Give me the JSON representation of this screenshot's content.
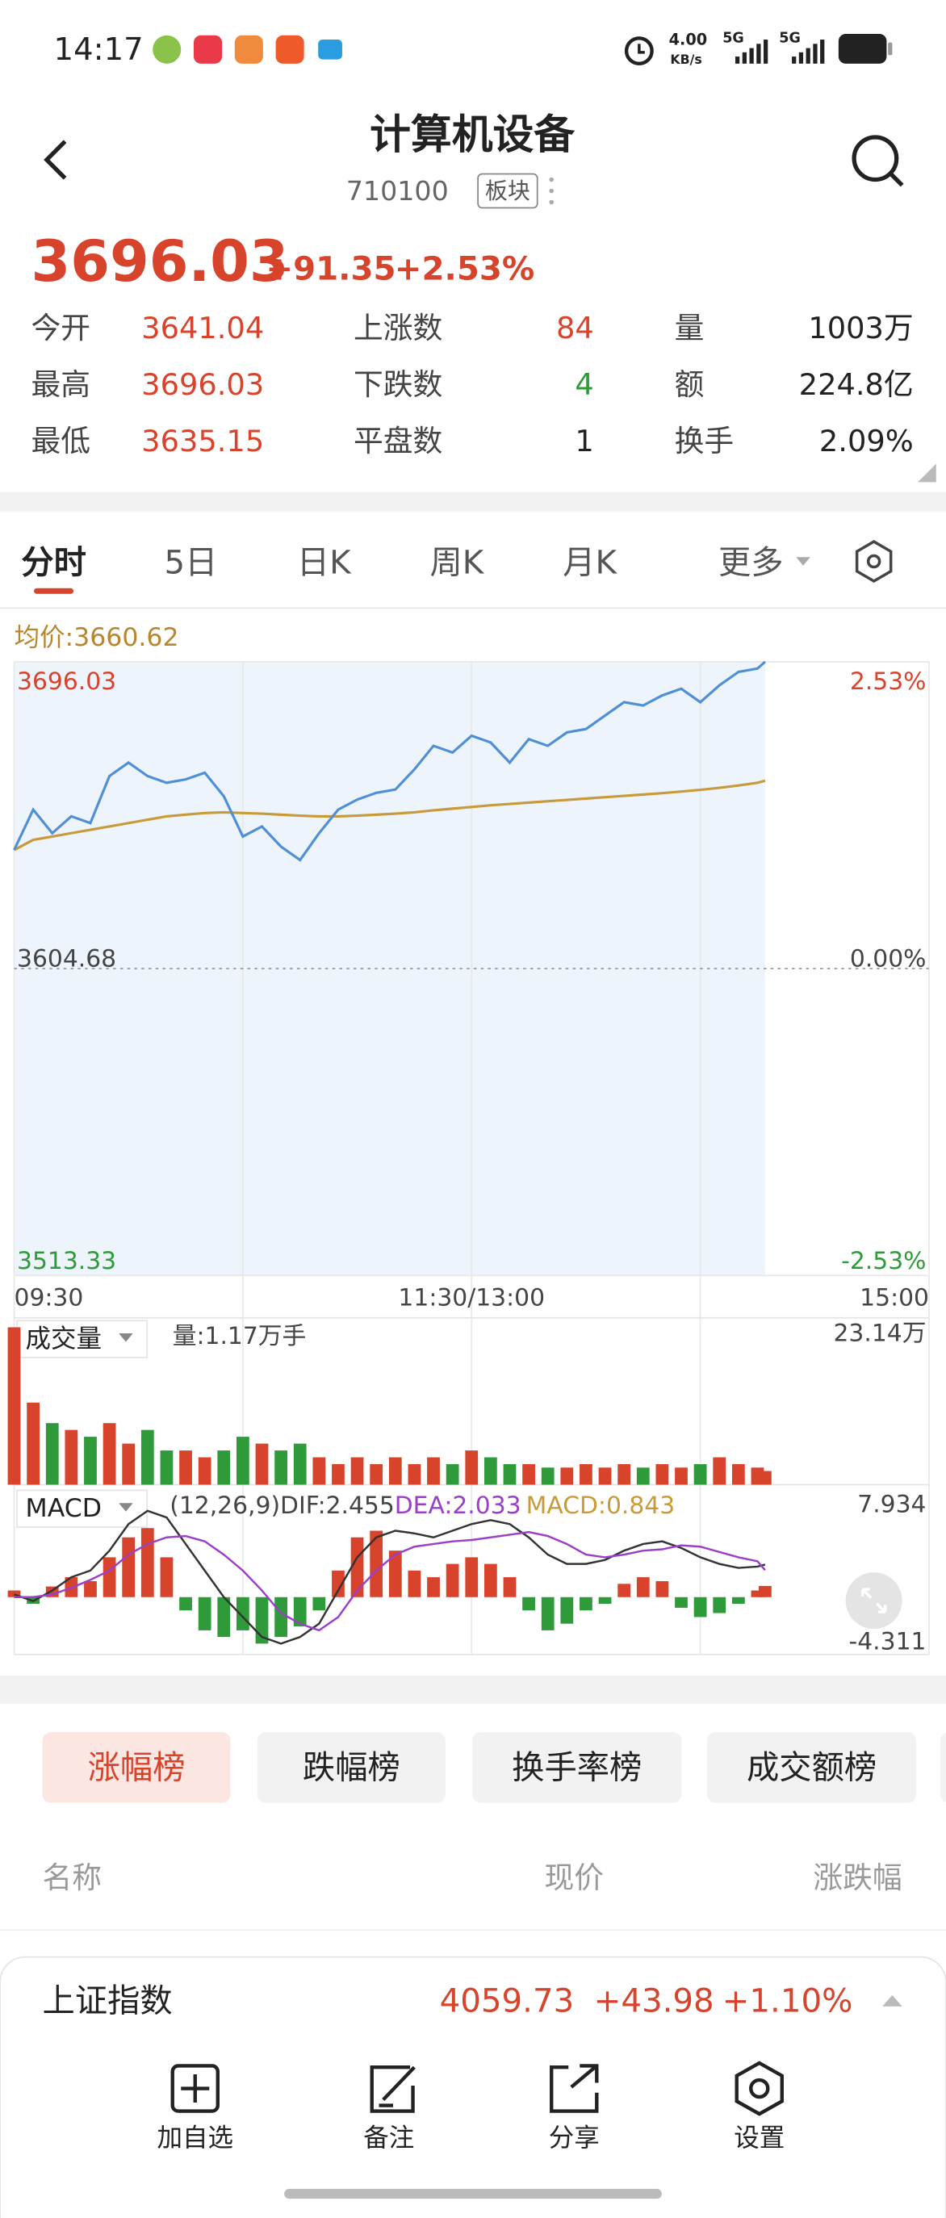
{
  "status_bar": {
    "time": "14:17",
    "speed": "4.00",
    "speed_unit": "KB/s",
    "network_1": "5G",
    "network_2": "5G"
  },
  "header": {
    "title": "计算机设备",
    "code": "710100",
    "tag": "板块"
  },
  "quote": {
    "price": "3696.03",
    "change": "+91.35",
    "change_pct": "+2.53%"
  },
  "stats": [
    [
      {
        "label": "今开",
        "value": "3641.04"
      },
      {
        "label": "上涨数",
        "value": "84"
      },
      {
        "label": "量",
        "value": "1003万"
      }
    ],
    [
      {
        "label": "最高",
        "value": "3696.03"
      },
      {
        "label": "下跌数",
        "value": "4"
      },
      {
        "label": "额",
        "value": "224.8亿"
      }
    ],
    [
      {
        "label": "最低",
        "value": "3635.15"
      },
      {
        "label": "平盘数",
        "value": "1"
      },
      {
        "label": "换手",
        "value": "2.09%"
      }
    ]
  ],
  "tabs": [
    "分时",
    "5日",
    "日K",
    "周K",
    "月K",
    "更多"
  ],
  "intraday": {
    "avg_label": "均价:3660.62",
    "ylim": [
      3513.33,
      3696.03
    ],
    "yticks": [
      3513.33,
      3604.68,
      3696.03
    ],
    "y2lim": [
      -2.53,
      2.53
    ],
    "y2ticks": [
      {
        "value": -2.53,
        "label": "-2.53%"
      },
      {
        "value": 0,
        "label": "0.00%"
      },
      {
        "value": 2.53,
        "label": "2.53%"
      }
    ],
    "xticks": [
      "09:30",
      "11:30/13:00",
      "15:00"
    ],
    "times": [
      "09:30",
      "09:35",
      "09:40",
      "09:45",
      "09:50",
      "09:55",
      "10:00",
      "10:05",
      "10:10",
      "10:15",
      "10:20",
      "10:25",
      "10:30",
      "10:35",
      "10:40",
      "10:45",
      "10:50",
      "10:55",
      "11:00",
      "11:05",
      "11:10",
      "11:15",
      "11:20",
      "11:25",
      "11:30",
      "13:05",
      "13:10",
      "13:15",
      "13:20",
      "13:25",
      "13:30",
      "13:35",
      "13:40",
      "13:45",
      "13:50",
      "13:55",
      "14:00",
      "14:05",
      "14:10",
      "14:15",
      "14:17"
    ],
    "price": [
      3640,
      3652,
      3645,
      3650,
      3648,
      3662,
      3666,
      3662,
      3660,
      3661,
      3663,
      3656,
      3644,
      3647,
      3641,
      3637,
      3645,
      3652,
      3655,
      3657,
      3658,
      3664,
      3671,
      3669,
      3674,
      3672,
      3666,
      3673,
      3671,
      3675,
      3676,
      3680,
      3684,
      3683,
      3686,
      3688,
      3684,
      3689,
      3693,
      3694,
      3696.03
    ],
    "avg": [
      3640,
      3643,
      3644,
      3645,
      3646,
      3647,
      3648,
      3649,
      3650,
      3650.5,
      3651,
      3651.2,
      3651,
      3650.8,
      3650.5,
      3650.2,
      3650,
      3650,
      3650.2,
      3650.5,
      3650.8,
      3651.2,
      3651.8,
      3652.3,
      3652.8,
      3653.3,
      3653.7,
      3654.1,
      3654.5,
      3654.9,
      3655.3,
      3655.7,
      3656.1,
      3656.5,
      3656.9,
      3657.4,
      3657.9,
      3658.5,
      3659.2,
      3660,
      3660.62
    ]
  },
  "volume": {
    "label": "成交量",
    "info": "量:1.17万手",
    "max": {
      "value": 23.14,
      "label": "23.14万"
    },
    "values": [
      23,
      12,
      9,
      8,
      7,
      9,
      6,
      8,
      5,
      5,
      4,
      5,
      7,
      6,
      5,
      6,
      4,
      3,
      4,
      3,
      4,
      3,
      4,
      3,
      5,
      4,
      3,
      3,
      2.5,
      2.5,
      3,
      2.5,
      3,
      2.5,
      3,
      2.5,
      3,
      4,
      3,
      2.5,
      2
    ]
  },
  "macd": {
    "label": "MACD",
    "params": "(12,26,9)DIF:2.455",
    "dea_label": "DEA:2.033",
    "macd_label": "MACD:0.843",
    "ylim": [
      -4.311,
      7.934
    ],
    "yticks": [
      -4.311,
      7.934
    ],
    "histogram": [
      0.5,
      -0.5,
      0.8,
      1.5,
      1.2,
      3,
      4.5,
      5.2,
      3,
      -1,
      -2.5,
      -3,
      -2.5,
      -3.5,
      -3,
      -2.2,
      -1,
      2,
      4.5,
      5,
      3.5,
      2,
      1.5,
      2.5,
      3,
      2.5,
      1.5,
      -1,
      -2.5,
      -2,
      -1,
      -0.5,
      1,
      1.5,
      1.2,
      -0.8,
      -1.5,
      -1.2,
      -0.5,
      0.5,
      0.843
    ],
    "dif": [
      0.2,
      -0.3,
      0.5,
      1.5,
      2,
      3.5,
      5.5,
      6.5,
      6,
      4,
      2,
      0,
      -1.5,
      -3,
      -3.5,
      -3,
      -2,
      0.5,
      3,
      4.5,
      5,
      4.8,
      4.5,
      5,
      5.5,
      5.8,
      5.5,
      4.5,
      3.2,
      2.5,
      2.5,
      2.8,
      3.5,
      4,
      4.2,
      3.7,
      3,
      2.5,
      2.2,
      2.3,
      2.455
    ],
    "dea": [
      0,
      0,
      0.2,
      0.7,
      1.3,
      2,
      3.2,
      4,
      4.5,
      4.6,
      4.2,
      3.2,
      2,
      0.5,
      -1.2,
      -2,
      -2.5,
      -1.5,
      0.5,
      2,
      3.2,
      3.8,
      4,
      4.2,
      4.3,
      4.5,
      4.7,
      4.9,
      4.6,
      4,
      3.2,
      3,
      3.2,
      3.5,
      3.6,
      3.9,
      3.8,
      3.4,
      3,
      2.7,
      2.033
    ]
  },
  "ranking": {
    "buttons": [
      "涨幅榜",
      "跌幅榜",
      "换手率榜",
      "成交额榜"
    ],
    "columns": [
      "名称",
      "现价",
      "涨跌幅"
    ]
  },
  "index_bar": {
    "name": "上证指数",
    "price": "4059.73",
    "change": "+43.98",
    "change_pct": "+1.10%"
  },
  "actions": [
    "加自选",
    "备注",
    "分享",
    "设置"
  ]
}
